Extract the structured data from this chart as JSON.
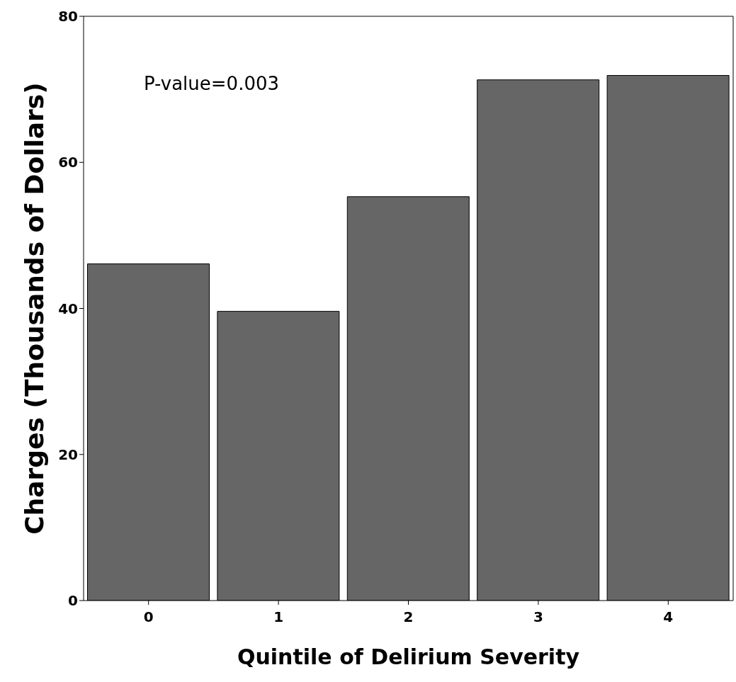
{
  "chart_data": {
    "type": "bar",
    "xlabel": "Quintile of Delirium Severity",
    "ylabel": "Charges (Thousands of Dollars)",
    "categories": [
      "0",
      "1",
      "2",
      "3",
      "4"
    ],
    "values": [
      46.1,
      39.6,
      55.3,
      71.3,
      71.9
    ],
    "color": "#666666",
    "ylim": [
      0,
      80
    ],
    "yticks": [
      0,
      20,
      40,
      60,
      80
    ],
    "annotations": [
      "P-value=0.003"
    ],
    "grid": false,
    "legend": false
  }
}
